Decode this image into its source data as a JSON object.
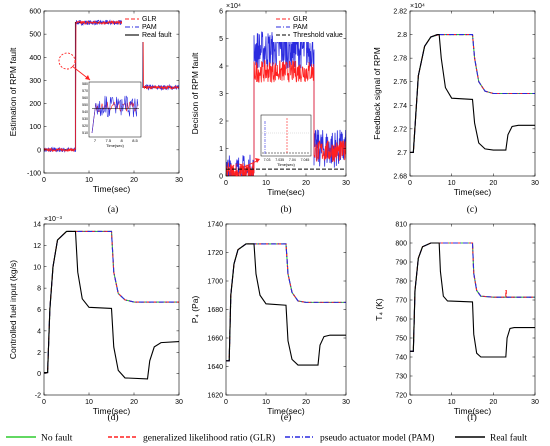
{
  "legend_bottom": [
    {
      "label": "No fault",
      "color": "#2ecc2e",
      "dash": "solid"
    },
    {
      "label": "generalized likelihood ratio (GLR)",
      "color": "#ff2020",
      "dash": "dash"
    },
    {
      "label": "pseudo actuator model (PAM)",
      "color": "#2a2adf",
      "dash": "dashdot"
    },
    {
      "label": "Real fault",
      "color": "#000000",
      "dash": "solid"
    }
  ],
  "chart_data": [
    {
      "id": "a",
      "type": "line",
      "panel_label": "(a)",
      "xlabel": "Time(sec)",
      "ylabel": "Estimation of RPM fault",
      "xlim": [
        0,
        30
      ],
      "ylim": [
        -100,
        600
      ],
      "xticks": [
        0,
        10,
        20,
        30
      ],
      "yticks": [
        -100,
        0,
        100,
        200,
        300,
        400,
        500,
        600
      ],
      "legend": [
        "GLR",
        "PAM",
        "Real fault"
      ],
      "legend_position": "top-right",
      "series": [
        {
          "name": "Real fault",
          "color": "#000000",
          "x": [
            0,
            7,
            7,
            22,
            22,
            30
          ],
          "y": [
            0,
            0,
            550,
            550,
            270,
            270
          ]
        },
        {
          "name": "PAM",
          "color": "#2a2adf",
          "noise": 10,
          "x": [
            0,
            7,
            7.05,
            22,
            22.05,
            30
          ],
          "y": [
            0,
            0,
            550,
            550,
            270,
            270
          ]
        },
        {
          "name": "GLR",
          "color": "#ff2020",
          "noise": 6,
          "x": [
            0,
            7,
            7.1,
            22,
            22.1,
            30
          ],
          "y": [
            0,
            0,
            550,
            550,
            270,
            270
          ]
        }
      ],
      "inset": {
        "xticks": [
          "7",
          "7.5",
          "8",
          "8.5"
        ],
        "xlabel": "Time(sec)",
        "yticks": [
          "510",
          "520",
          "530",
          "540",
          "550",
          "560",
          "570",
          "580"
        ]
      }
    },
    {
      "id": "b",
      "type": "line",
      "panel_label": "(b)",
      "xlabel": "Time(sec)",
      "ylabel": "Decision of RPM fault",
      "multiplier": "×10⁴",
      "xlim": [
        0,
        30
      ],
      "ylim": [
        0,
        6
      ],
      "xticks": [
        0,
        10,
        20,
        30
      ],
      "yticks": [
        0,
        1,
        2,
        3,
        4,
        5,
        6
      ],
      "legend": [
        "GLR",
        "PAM",
        "Threshold value"
      ],
      "legend_position": "top-right",
      "series": [
        {
          "name": "PAM",
          "color": "#2a2adf",
          "noise": 0.7,
          "x": [
            0,
            7,
            7,
            22,
            22,
            30
          ],
          "y": [
            0.1,
            0.1,
            4.6,
            4.6,
            1.0,
            1.0
          ]
        },
        {
          "name": "GLR",
          "color": "#ff2020",
          "noise": 0.4,
          "x": [
            0,
            7,
            7,
            22,
            22,
            30
          ],
          "y": [
            0.1,
            0.1,
            3.8,
            3.8,
            0.9,
            0.9
          ]
        },
        {
          "name": "Threshold value",
          "color": "#000000",
          "x": [
            0,
            30
          ],
          "y": [
            0.25,
            0.25
          ]
        }
      ],
      "inset": {
        "xticks": [
          "7.03",
          "7.035",
          "7.04",
          "7.045"
        ],
        "xlabel": "Time(sec)"
      }
    },
    {
      "id": "c",
      "type": "line",
      "panel_label": "(c)",
      "xlabel": "Time(sec)",
      "ylabel": "Feedback signal of RPM",
      "multiplier": "×10⁴",
      "xlim": [
        0,
        30
      ],
      "ylim": [
        2.68,
        2.82
      ],
      "xticks": [
        0,
        10,
        20,
        30
      ],
      "yticks": [
        2.68,
        2.7,
        2.72,
        2.74,
        2.76,
        2.78,
        2.8,
        2.82
      ],
      "series": [
        {
          "name": "No fault",
          "color": "#2ecc2e",
          "x": [
            0,
            0.8,
            2,
            3.5,
            5,
            7,
            8,
            15,
            15.5,
            16.5,
            18,
            20,
            30
          ],
          "y": [
            2.7,
            2.7,
            2.765,
            2.79,
            2.798,
            2.8,
            2.8,
            2.8,
            2.78,
            2.76,
            2.752,
            2.75,
            2.75
          ]
        },
        {
          "name": "GLR",
          "color": "#ff2020",
          "x": [
            0,
            0.8,
            2,
            3.5,
            5,
            7,
            8,
            15,
            15.5,
            16.5,
            18,
            20,
            30
          ],
          "y": [
            2.7,
            2.7,
            2.765,
            2.79,
            2.798,
            2.8,
            2.8,
            2.8,
            2.78,
            2.76,
            2.752,
            2.75,
            2.75
          ]
        },
        {
          "name": "PAM",
          "color": "#2a2adf",
          "x": [
            0,
            0.8,
            2,
            3.5,
            5,
            7,
            8,
            15,
            15.5,
            16.5,
            18,
            20,
            30
          ],
          "y": [
            2.7,
            2.7,
            2.765,
            2.79,
            2.798,
            2.8,
            2.8,
            2.8,
            2.78,
            2.76,
            2.752,
            2.75,
            2.75
          ]
        },
        {
          "name": "Real fault",
          "color": "#000000",
          "x": [
            0,
            0.8,
            2,
            3.5,
            5,
            6.5,
            7,
            7.5,
            8.5,
            10,
            15,
            15.5,
            16.5,
            18,
            20,
            23,
            23.5,
            24.5,
            26,
            30
          ],
          "y": [
            2.7,
            2.7,
            2.765,
            2.79,
            2.798,
            2.8,
            2.8,
            2.78,
            2.755,
            2.746,
            2.745,
            2.725,
            2.708,
            2.703,
            2.702,
            2.702,
            2.715,
            2.722,
            2.723,
            2.723
          ]
        }
      ]
    },
    {
      "id": "d",
      "type": "line",
      "panel_label": "(d)",
      "xlabel": "Time(sec)",
      "ylabel": "Controlled fuel input (kg/s)",
      "multiplier": "×10⁻³",
      "xlim": [
        0,
        30
      ],
      "ylim": [
        -2,
        14
      ],
      "xticks": [
        0,
        10,
        20,
        30
      ],
      "yticks": [
        -2,
        0,
        2,
        4,
        6,
        8,
        10,
        12,
        14
      ],
      "series": [
        {
          "name": "No fault",
          "color": "#2ecc2e",
          "x": [
            0,
            0.8,
            1.3,
            2,
            3,
            5,
            15,
            15.5,
            16.5,
            18,
            20,
            30
          ],
          "y": [
            0.1,
            0.1,
            6,
            10,
            12.5,
            13.3,
            13.3,
            9.5,
            7.5,
            6.9,
            6.7,
            6.7
          ]
        },
        {
          "name": "GLR",
          "color": "#ff2020",
          "x": [
            0,
            0.8,
            1.3,
            2,
            3,
            5,
            15,
            15.5,
            16.5,
            18,
            20,
            30
          ],
          "y": [
            0.1,
            0.1,
            6,
            10,
            12.5,
            13.3,
            13.3,
            9.5,
            7.5,
            6.9,
            6.7,
            6.7
          ]
        },
        {
          "name": "PAM",
          "color": "#2a2adf",
          "x": [
            0,
            0.8,
            1.3,
            2,
            3,
            5,
            15,
            15.5,
            16.5,
            18,
            20,
            30
          ],
          "y": [
            0.1,
            0.1,
            6,
            10,
            12.5,
            13.3,
            13.3,
            9.5,
            7.5,
            6.9,
            6.7,
            6.7
          ]
        },
        {
          "name": "Real fault",
          "color": "#000000",
          "x": [
            0,
            0.8,
            1.3,
            2,
            3,
            5,
            7,
            7.5,
            8.5,
            10,
            15,
            15.5,
            16.5,
            18,
            23,
            23.5,
            24.5,
            26,
            30
          ],
          "y": [
            0.1,
            0.1,
            6,
            10,
            12.5,
            13.3,
            13.3,
            9.5,
            7,
            6.2,
            6.1,
            2.5,
            0.3,
            -0.4,
            -0.5,
            1.2,
            2.5,
            2.9,
            3.0
          ]
        }
      ]
    },
    {
      "id": "e",
      "type": "line",
      "panel_label": "(e)",
      "xlabel": "Time(sec)",
      "ylabel": "P₄ (Pa)",
      "xlim": [
        0,
        30
      ],
      "ylim": [
        1620,
        1740
      ],
      "xticks": [
        0,
        10,
        20,
        30
      ],
      "yticks": [
        1620,
        1640,
        1660,
        1680,
        1700,
        1720,
        1740
      ],
      "series": [
        {
          "name": "No fault",
          "color": "#2ecc2e",
          "x": [
            0,
            0.8,
            1.2,
            2,
            3,
            5,
            15,
            15.5,
            16.5,
            18,
            20,
            30
          ],
          "y": [
            1644,
            1644,
            1690,
            1712,
            1722,
            1726,
            1726,
            1705,
            1692,
            1686,
            1685,
            1685
          ]
        },
        {
          "name": "GLR",
          "color": "#ff2020",
          "x": [
            0,
            0.8,
            1.2,
            2,
            3,
            5,
            15,
            15.5,
            16.5,
            18,
            20,
            30
          ],
          "y": [
            1644,
            1644,
            1690,
            1712,
            1722,
            1726,
            1726,
            1705,
            1692,
            1686,
            1685,
            1685
          ]
        },
        {
          "name": "PAM",
          "color": "#2a2adf",
          "x": [
            0,
            0.8,
            1.2,
            2,
            3,
            5,
            15,
            15.5,
            16.5,
            18,
            20,
            30
          ],
          "y": [
            1644,
            1644,
            1690,
            1712,
            1722,
            1726,
            1726,
            1705,
            1692,
            1686,
            1685,
            1685
          ]
        },
        {
          "name": "Real fault",
          "color": "#000000",
          "x": [
            0,
            0.8,
            1.2,
            2,
            3,
            5,
            7,
            7.5,
            8.5,
            10,
            15,
            15.5,
            16.5,
            18,
            23,
            23.5,
            24.5,
            26,
            30
          ],
          "y": [
            1644,
            1644,
            1690,
            1712,
            1722,
            1726,
            1726,
            1705,
            1690,
            1684,
            1683,
            1658,
            1645,
            1641,
            1641,
            1655,
            1661,
            1662,
            1662
          ]
        }
      ]
    },
    {
      "id": "f",
      "type": "line",
      "panel_label": "(f)",
      "xlabel": "Time(sec)",
      "ylabel": "T₄ (K)",
      "xlim": [
        0,
        30
      ],
      "ylim": [
        720,
        810
      ],
      "xticks": [
        0,
        10,
        20,
        30
      ],
      "yticks": [
        720,
        730,
        740,
        750,
        760,
        770,
        780,
        790,
        800,
        810
      ],
      "series": [
        {
          "name": "No fault",
          "color": "#2ecc2e",
          "x": [
            0,
            0.8,
            1.2,
            2,
            3,
            5,
            15,
            15.3,
            16,
            17,
            20,
            30
          ],
          "y": [
            743,
            743,
            775,
            792,
            798,
            800,
            800,
            784,
            775,
            772,
            771.5,
            771.5
          ]
        },
        {
          "name": "GLR",
          "color": "#ff2020",
          "x": [
            0,
            0.8,
            1.2,
            2,
            3,
            5,
            15,
            15.3,
            16,
            17,
            20,
            23,
            23,
            23.1,
            23.1,
            30
          ],
          "y": [
            743,
            743,
            775,
            792,
            798,
            800,
            800,
            784,
            775,
            772,
            771.5,
            771.5,
            775,
            775,
            771.5,
            771.5
          ]
        },
        {
          "name": "PAM",
          "color": "#2a2adf",
          "x": [
            0,
            0.8,
            1.2,
            2,
            3,
            5,
            15,
            15.3,
            16,
            17,
            20,
            30
          ],
          "y": [
            743,
            743,
            775,
            792,
            798,
            800,
            800,
            784,
            775,
            772,
            771.5,
            771.5
          ]
        },
        {
          "name": "Real fault",
          "color": "#000000",
          "x": [
            0,
            0.8,
            1.2,
            2,
            3,
            5,
            7,
            7.3,
            8,
            9,
            15,
            15.3,
            16,
            17,
            23,
            23.3,
            24,
            25,
            30
          ],
          "y": [
            743,
            743,
            775,
            792,
            798,
            800,
            800,
            785,
            772,
            769.5,
            769,
            752,
            742,
            740,
            740,
            750,
            755,
            755.5,
            755.5
          ]
        }
      ]
    }
  ]
}
